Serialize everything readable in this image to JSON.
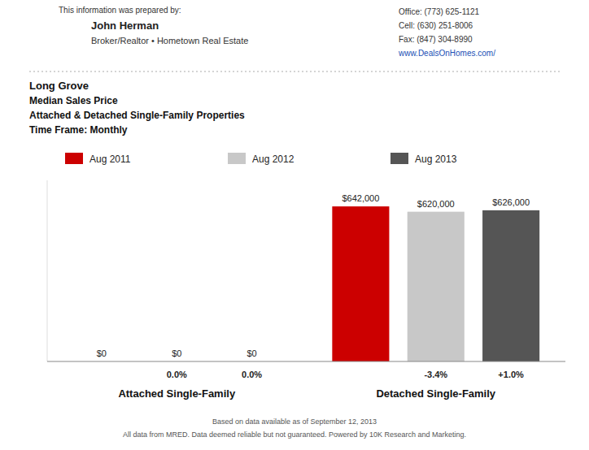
{
  "chart_data": {
    "type": "bar",
    "title": "Long Grove",
    "subtitle": [
      "Median Sales Price",
      "Attached & Detached Single-Family Properties",
      "Time Frame: Monthly"
    ],
    "annotations": [
      "This information was prepared by:",
      "John Herman",
      "Broker/Realtor • Hometown Real Estate",
      "Office: (773) 625-1121",
      "Cell: (630) 251-8006",
      "Fax: (847) 304-8990",
      "www.DealsOnHomes.com/",
      "Based on data available as of September 12, 2013",
      "All data from MRED. Data deemed reliable but not guaranteed. Powered by 10K Research and Marketing."
    ],
    "categories": [
      "Attached Single-Family",
      "Detached Single-Family"
    ],
    "series": [
      {
        "name": "Aug 2011",
        "color": "#cc0000",
        "values": [
          0,
          642000
        ],
        "value_labels": [
          "$0",
          "$642,000"
        ]
      },
      {
        "name": "Aug 2012",
        "color": "#c8c8c8",
        "values": [
          0,
          620000
        ],
        "value_labels": [
          "$0",
          "$620,000"
        ],
        "changes": [
          0.0,
          -3.4
        ],
        "change_labels": [
          "0.0%",
          "-3.4%"
        ]
      },
      {
        "name": "Aug 2013",
        "color": "#555555",
        "values": [
          0,
          626000
        ],
        "value_labels": [
          "$0",
          "$626,000"
        ],
        "changes": [
          0.0,
          1.0
        ],
        "change_labels": [
          "0.0%",
          "+1.0%"
        ]
      }
    ],
    "ylim": [
      0,
      750000
    ],
    "data_labels": true,
    "tick_labels": "x",
    "legend": "top",
    "grid": false
  }
}
